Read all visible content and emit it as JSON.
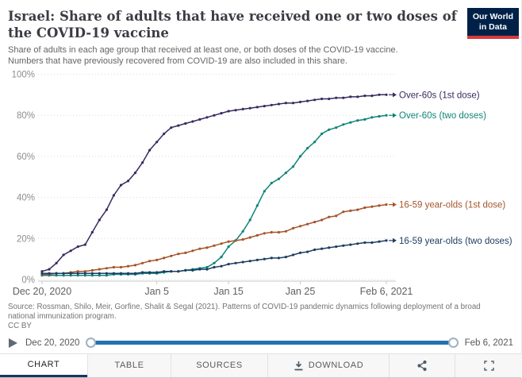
{
  "header": {
    "title": "Israel: Share of adults that have received one or two doses of the COVID-19 vaccine",
    "subtitle": "Share of adults in each age group that received at least one, or both doses of the COVID-19 vaccine. Numbers that have previously recovered from COVID-19 are also included in this share.",
    "logo": {
      "line1": "Our World",
      "line2": "in Data",
      "bg_color": "#002147",
      "stripe_color": "#d93a3b"
    }
  },
  "chart_data": {
    "type": "line",
    "x_start": "Dec 20, 2020",
    "x_end": "Feb 6, 2021",
    "x_frequency": "daily",
    "x_ticks": [
      {
        "label": "Dec 20, 2020",
        "day": 0
      },
      {
        "label": "Jan 5",
        "day": 16
      },
      {
        "label": "Jan 15",
        "day": 26
      },
      {
        "label": "Jan 25",
        "day": 36
      },
      {
        "label": "Feb 6, 2021",
        "day": 48
      }
    ],
    "y_ticks": [
      0,
      20,
      40,
      60,
      80,
      100
    ],
    "y_tick_suffix": "%",
    "ylim": [
      0,
      100
    ],
    "grid": true,
    "legend_position": "right-of-line-ends",
    "series": [
      {
        "name": "Over-60s (1st dose)",
        "color": "#3a2a60",
        "values": [
          4,
          5,
          8,
          12,
          14,
          16,
          17,
          23,
          29,
          34,
          41,
          46,
          48,
          52,
          57,
          63,
          67,
          71,
          74,
          75,
          76,
          77,
          78,
          79,
          80,
          81,
          82,
          82.5,
          83,
          83.5,
          84,
          84.5,
          85,
          85.5,
          86,
          86,
          86.5,
          87,
          87.5,
          88,
          88,
          88.5,
          88.5,
          89,
          89,
          89.5,
          89.5,
          90,
          90
        ]
      },
      {
        "name": "Over-60s (two doses)",
        "color": "#0f847a",
        "values": [
          2,
          2,
          2,
          2,
          2,
          2,
          2,
          2,
          2,
          2,
          2.5,
          2.5,
          2.5,
          2.5,
          3,
          3,
          3,
          3.5,
          4,
          4,
          4.5,
          5,
          5.5,
          6,
          8,
          11,
          16,
          19,
          23.5,
          29,
          36,
          43,
          47,
          49,
          52,
          55,
          60,
          64,
          67,
          71,
          73,
          74,
          75.5,
          76.5,
          77.5,
          78,
          79,
          79.5,
          80
        ]
      },
      {
        "name": "16-59 year-olds (1st dose)",
        "color": "#a4552a",
        "values": [
          2.5,
          2.5,
          3,
          3,
          3.5,
          4,
          4,
          4.5,
          5,
          5.5,
          6,
          6,
          6.5,
          7,
          8,
          9,
          9.5,
          10.5,
          11.5,
          12.5,
          13,
          14,
          15,
          15.5,
          16.5,
          17.5,
          18.5,
          19,
          19.5,
          20.5,
          21.5,
          22.5,
          23,
          23,
          23.5,
          25,
          26,
          27,
          28,
          29,
          30.5,
          31,
          33,
          33.5,
          34,
          35,
          35.5,
          36,
          36.5
        ]
      },
      {
        "name": "16-59 year-olds (two doses)",
        "color": "#1d3d63",
        "values": [
          3,
          3,
          3,
          3,
          3,
          3,
          3,
          3,
          3,
          3,
          3,
          3,
          3,
          3,
          3.5,
          3.5,
          3.5,
          4,
          4,
          4,
          4.5,
          4.5,
          5,
          5,
          6,
          6.5,
          7.5,
          8,
          8.5,
          9,
          9.5,
          10,
          10.5,
          10.5,
          11,
          12,
          13,
          13.5,
          14.5,
          15,
          15.5,
          16,
          16.5,
          17,
          17.5,
          18,
          18,
          18.5,
          19
        ]
      }
    ]
  },
  "source": {
    "line1": "Source: Rossman, Shilo, Meir, Gorfine, Shalit & Segal (2021). Patterns of COVID-19 pandemic dynamics following deployment of a broad national immunization program.",
    "license": "CC BY"
  },
  "timeline": {
    "start_label": "Dec 20, 2020",
    "end_label": "Feb 6, 2021",
    "track_color": "#2271b1"
  },
  "footer_tabs": [
    {
      "label": "CHART",
      "active": true
    },
    {
      "label": "TABLE"
    },
    {
      "label": "SOURCES"
    },
    {
      "label": "DOWNLOAD",
      "icon": "download-icon"
    },
    {
      "label": "",
      "icon": "share-icon"
    },
    {
      "label": "",
      "icon": "fullscreen-icon"
    }
  ]
}
